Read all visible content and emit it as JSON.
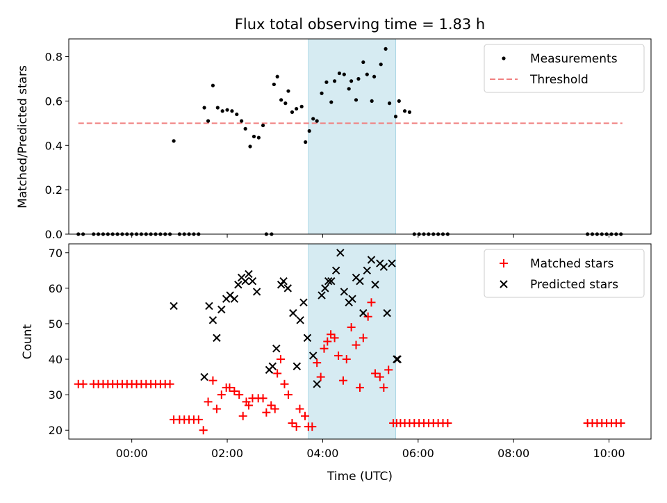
{
  "chart_data": [
    {
      "type": "scatter",
      "title": "Flux total observing time = 1.83 h",
      "xlabel": "",
      "ylabel": "Matched/Predicted stars",
      "xlim": [
        -1.32,
        10.88
      ],
      "ylim": [
        0,
        0.88
      ],
      "yticks": [
        0.0,
        0.2,
        0.4,
        0.6,
        0.8
      ],
      "ytick_labels": [
        "0.0",
        "0.2",
        "0.4",
        "0.6",
        "0.8"
      ],
      "xticks": [
        0,
        2,
        4,
        6,
        8,
        10
      ],
      "grid": false,
      "legend_position": "top-right",
      "colors": {
        "measurements": "#000000",
        "threshold": "#f08080",
        "span": "#add8e6"
      },
      "highlight_span": [
        3.7,
        5.53
      ],
      "threshold": {
        "name": "Threshold",
        "y": 0.5,
        "x_range": [
          -1.12,
          10.28
        ]
      },
      "series": [
        {
          "name": "Measurements",
          "marker": "dot",
          "color": "#000000",
          "x": [
            -1.12,
            -1.02,
            -0.8,
            -0.7,
            -0.6,
            -0.5,
            -0.4,
            -0.3,
            -0.2,
            -0.1,
            0.0,
            0.1,
            0.2,
            0.3,
            0.4,
            0.5,
            0.6,
            0.7,
            0.8,
            0.88,
            1.0,
            1.1,
            1.2,
            1.3,
            1.4,
            1.52,
            1.6,
            1.7,
            1.8,
            1.9,
            2.0,
            2.1,
            2.2,
            2.3,
            2.38,
            2.48,
            2.56,
            2.66,
            2.75,
            2.82,
            2.93,
            2.98,
            3.05,
            3.13,
            3.22,
            3.28,
            3.36,
            3.45,
            3.56,
            3.64,
            3.72,
            3.8,
            3.88,
            3.98,
            4.08,
            4.18,
            4.25,
            4.35,
            4.45,
            4.55,
            4.6,
            4.7,
            4.75,
            4.85,
            4.93,
            5.03,
            5.08,
            5.22,
            5.32,
            5.4,
            5.53,
            5.6,
            5.72,
            5.82,
            5.92,
            6.02,
            6.12,
            6.22,
            6.32,
            6.42,
            6.52,
            6.62,
            9.55,
            9.65,
            9.75,
            9.85,
            9.95,
            10.05,
            10.15,
            10.25
          ],
          "y": [
            0,
            0,
            0,
            0,
            0,
            0,
            0,
            0,
            0,
            0,
            0,
            0,
            0,
            0,
            0,
            0,
            0,
            0,
            0,
            0.42,
            0,
            0,
            0,
            0,
            0,
            0.57,
            0.51,
            0.67,
            0.57,
            0.555,
            0.56,
            0.555,
            0.54,
            0.51,
            0.475,
            0.395,
            0.44,
            0.435,
            0.49,
            0,
            0,
            0.675,
            0.71,
            0.605,
            0.59,
            0.645,
            0.55,
            0.565,
            0.575,
            0.415,
            0.465,
            0.52,
            0.51,
            0.635,
            0.685,
            0.595,
            0.69,
            0.725,
            0.72,
            0.655,
            0.69,
            0.605,
            0.7,
            0.775,
            0.72,
            0.6,
            0.71,
            0.765,
            0.835,
            0.59,
            0.53,
            0.6,
            0.555,
            0.55,
            0,
            0,
            0,
            0,
            0,
            0,
            0,
            0,
            0,
            0,
            0,
            0,
            0,
            0,
            0,
            0
          ]
        }
      ]
    },
    {
      "type": "scatter",
      "title": "",
      "xlabel": "Time (UTC)",
      "ylabel": "Count",
      "xlim": [
        -1.32,
        10.88
      ],
      "ylim": [
        17.5,
        72.5
      ],
      "yticks": [
        20,
        30,
        40,
        50,
        60,
        70
      ],
      "ytick_labels": [
        "20",
        "30",
        "40",
        "50",
        "60",
        "70"
      ],
      "xticks": [
        0,
        2,
        4,
        6,
        8,
        10
      ],
      "xtick_labels": [
        "00:00",
        "02:00",
        "04:00",
        "06:00",
        "08:00",
        "10:00"
      ],
      "grid": false,
      "legend_position": "top-right",
      "colors": {
        "matched": "#ff0000",
        "predicted": "#000000",
        "span": "#add8e6"
      },
      "highlight_span": [
        3.7,
        5.53
      ],
      "series": [
        {
          "name": "Matched stars",
          "marker": "plus",
          "color": "#ff0000",
          "x": [
            -1.12,
            -1.02,
            -0.8,
            -0.7,
            -0.6,
            -0.5,
            -0.4,
            -0.3,
            -0.2,
            -0.1,
            0.0,
            0.1,
            0.2,
            0.3,
            0.4,
            0.5,
            0.6,
            0.7,
            0.8,
            0.88,
            1.0,
            1.1,
            1.2,
            1.3,
            1.4,
            1.5,
            1.6,
            1.7,
            1.78,
            1.88,
            1.98,
            2.05,
            2.15,
            2.25,
            2.33,
            2.4,
            2.45,
            2.53,
            2.65,
            2.75,
            2.82,
            2.92,
            3.0,
            3.05,
            3.12,
            3.2,
            3.28,
            3.36,
            3.45,
            3.52,
            3.63,
            3.7,
            3.78,
            3.88,
            3.96,
            4.03,
            4.1,
            4.17,
            4.25,
            4.33,
            4.43,
            4.5,
            4.6,
            4.7,
            4.78,
            4.85,
            4.95,
            5.02,
            5.1,
            5.2,
            5.28,
            5.38,
            5.48,
            5.55,
            5.63,
            5.72,
            5.82,
            5.92,
            6.02,
            6.12,
            6.22,
            6.32,
            6.42,
            6.52,
            6.62,
            9.55,
            9.65,
            9.75,
            9.85,
            9.95,
            10.05,
            10.15,
            10.25
          ],
          "y": [
            33,
            33,
            33,
            33,
            33,
            33,
            33,
            33,
            33,
            33,
            33,
            33,
            33,
            33,
            33,
            33,
            33,
            33,
            33,
            23,
            23,
            23,
            23,
            23,
            23,
            20,
            28,
            34,
            26,
            30,
            32,
            32,
            31,
            30,
            24,
            28,
            27,
            29,
            29,
            29,
            25,
            27,
            26,
            36,
            40,
            33,
            30,
            22,
            21,
            26,
            24,
            21,
            21,
            39,
            35,
            43,
            45,
            47,
            46,
            41,
            34,
            40,
            49,
            44,
            32,
            46,
            52,
            56,
            36,
            35,
            32,
            37,
            22,
            22,
            22,
            22,
            22,
            22,
            22,
            22,
            22,
            22,
            22,
            22,
            22,
            22,
            22,
            22,
            22,
            22,
            22,
            22,
            22
          ]
        },
        {
          "name": "Predicted stars",
          "marker": "x",
          "color": "#000000",
          "x": [
            0.88,
            1.52,
            1.62,
            1.7,
            1.78,
            1.88,
            1.98,
            2.06,
            2.15,
            2.23,
            2.3,
            2.38,
            2.45,
            2.53,
            2.62,
            2.88,
            2.95,
            3.03,
            3.13,
            3.18,
            3.27,
            3.38,
            3.46,
            3.53,
            3.6,
            3.68,
            3.8,
            3.88,
            3.98,
            4.05,
            4.12,
            4.18,
            4.28,
            4.37,
            4.45,
            4.55,
            4.62,
            4.7,
            4.78,
            4.85,
            4.93,
            5.02,
            5.1,
            5.2,
            5.28,
            5.35,
            5.45,
            5.55,
            5.57
          ],
          "y": [
            55,
            35,
            55,
            51,
            46,
            54,
            57,
            58,
            57,
            61,
            63,
            62,
            64,
            62,
            59,
            37,
            38,
            43,
            61,
            62,
            60,
            53,
            38,
            51,
            56,
            46,
            41,
            33,
            58,
            60,
            62,
            62,
            65,
            70,
            59,
            56,
            57,
            63,
            62,
            53,
            65,
            68,
            61,
            67,
            66,
            53,
            67,
            40,
            40
          ]
        }
      ]
    }
  ]
}
